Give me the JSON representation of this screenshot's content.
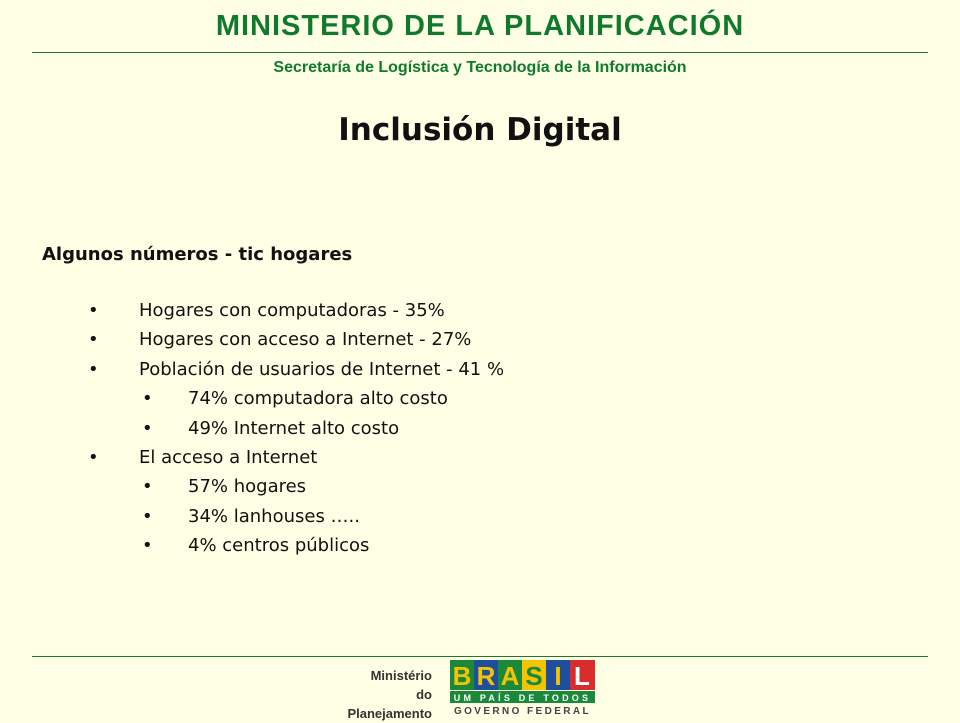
{
  "header": {
    "title": "MINISTERIO DE LA PLANIFICACIÓN",
    "subtitle": "Secretaría de Logística y Tecnología de la Información"
  },
  "slide": {
    "title": "Inclusión Digital",
    "section_heading": "Algunos números - tic hogares",
    "bullet_glyph": "•",
    "items": [
      {
        "level": 1,
        "text": "Hogares con computadoras - 35%"
      },
      {
        "level": 1,
        "text": "Hogares con acceso a Internet - 27%"
      },
      {
        "level": 1,
        "text": "Población de usuarios de Internet - 41 %"
      },
      {
        "level": 2,
        "text": "74% computadora alto costo"
      },
      {
        "level": 2,
        "text": "49% Internet alto costo"
      },
      {
        "level": 1,
        "text": "El acceso a Internet"
      },
      {
        "level": 2,
        "text": "57% hogares"
      },
      {
        "level": 2,
        "text": "34% lanhouses ….."
      },
      {
        "level": 2,
        "text": "4% centros públicos"
      }
    ]
  },
  "footer": {
    "ministry_logo": {
      "line1": "Ministério",
      "line2": "do Planejamento"
    },
    "brasil_logo": {
      "letters": [
        "B",
        "R",
        "A",
        "S",
        "I",
        "L"
      ],
      "tagline": "UM PAÍS DE TODOS",
      "government": "GOVERNO FEDERAL"
    }
  },
  "colors": {
    "background": "#ffffe6",
    "header_green": "#0f7a2c",
    "text": "#111111",
    "logo_green": "#1a8a3a",
    "logo_yellow": "#f5c400",
    "logo_blue": "#1f4e9c",
    "logo_red": "#d92d2d"
  }
}
